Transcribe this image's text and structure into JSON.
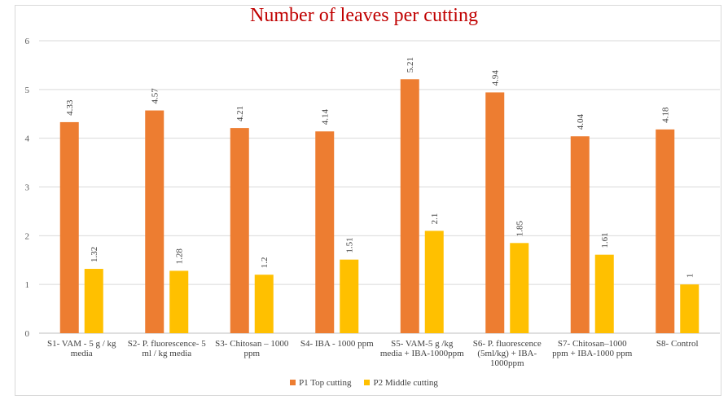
{
  "chart_data": {
    "type": "bar",
    "title": "Number of leaves per cutting",
    "xlabel": "",
    "ylabel": "",
    "ylim": [
      0,
      6
    ],
    "yticks": [
      0,
      1,
      2,
      3,
      4,
      5,
      6
    ],
    "grid": true,
    "legend_position": "bottom",
    "categories": [
      [
        "S1- VAM - 5 g / kg",
        "media"
      ],
      [
        "S2- P. fluorescence- 5",
        "ml / kg media"
      ],
      [
        "S3- Chitosan – 1000",
        "ppm"
      ],
      [
        "S4- IBA - 1000 ppm"
      ],
      [
        "S5- VAM-5 g /kg",
        "media + IBA-1000ppm"
      ],
      [
        "S6- P. fluorescence",
        "(5ml/kg) + IBA-",
        "1000ppm"
      ],
      [
        "S7- Chitosan–1000",
        "ppm + IBA-1000 ppm"
      ],
      [
        "S8- Control"
      ]
    ],
    "series": [
      {
        "name": "P1 Top cutting",
        "color": "#ed7d31",
        "values": [
          4.33,
          4.57,
          4.21,
          4.14,
          5.21,
          4.94,
          4.04,
          4.18
        ],
        "labels": [
          "4.33",
          "4.57",
          "4.21",
          "4.14",
          "5.21",
          "4.94",
          "4.04",
          "4.18"
        ]
      },
      {
        "name": "P2 Middle cutting",
        "color": "#ffc000",
        "values": [
          1.32,
          1.28,
          1.2,
          1.51,
          2.1,
          1.85,
          1.61,
          1
        ],
        "labels": [
          "1.32",
          "1.28",
          "1.2",
          "1.51",
          "2.1",
          "1.85",
          "1.61",
          "1"
        ]
      }
    ]
  }
}
